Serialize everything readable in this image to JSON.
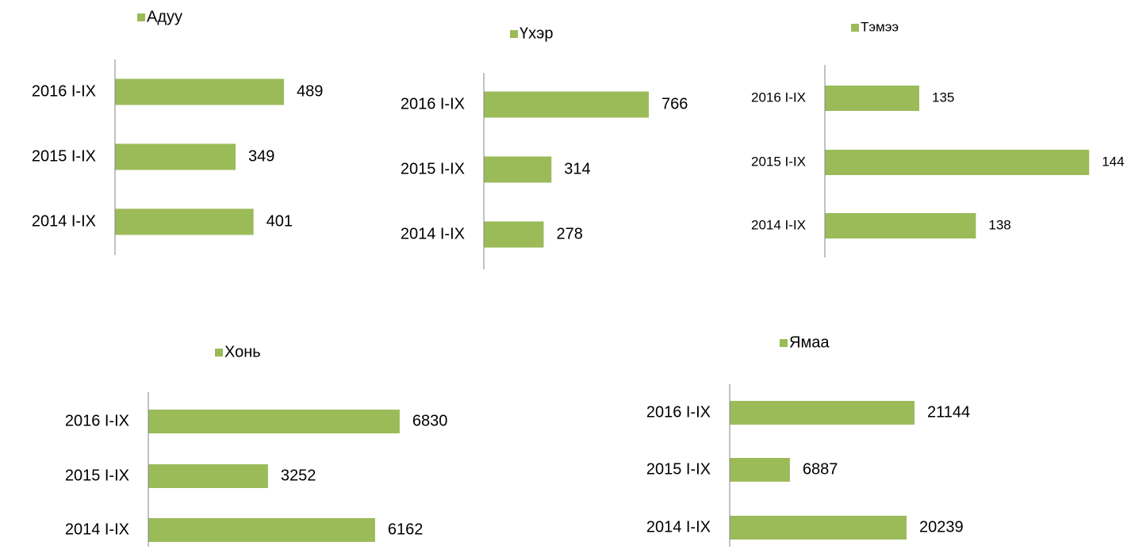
{
  "chart_data": [
    {
      "type": "bar",
      "orientation": "horizontal",
      "categories": [
        "2016 I-IX",
        "2015 I-IX",
        "2014 I-IX"
      ],
      "series": [
        {
          "name": "Адуу",
          "color": "#9bbb59",
          "values": [
            489,
            349,
            401
          ]
        }
      ],
      "xlim": [
        0,
        600
      ]
    },
    {
      "type": "bar",
      "orientation": "horizontal",
      "categories": [
        "2016 I-IX",
        "2015 I-IX",
        "2014 I-IX"
      ],
      "series": [
        {
          "name": "Үхэр",
          "color": "#9bbb59",
          "values": [
            766,
            314,
            278
          ]
        }
      ],
      "xlim": [
        0,
        1000
      ]
    },
    {
      "type": "bar",
      "orientation": "horizontal",
      "categories": [
        "2016 I-IX",
        "2015 I-IX",
        "2014 I-IX"
      ],
      "series": [
        {
          "name": "Тэмээ",
          "color": "#9bbb59",
          "values": [
            135,
            144,
            138
          ]
        }
      ],
      "xlim": [
        130,
        145
      ]
    },
    {
      "type": "bar",
      "orientation": "horizontal",
      "categories": [
        "2016 I-IX",
        "2015 I-IX",
        "2014 I-IX"
      ],
      "series": [
        {
          "name": "Хонь",
          "color": "#9bbb59",
          "values": [
            6830,
            3252,
            6162
          ]
        }
      ],
      "xlim": [
        0,
        8000
      ]
    },
    {
      "type": "bar",
      "orientation": "horizontal",
      "categories": [
        "2016 I-IX",
        "2015 I-IX",
        "2014 I-IX"
      ],
      "series": [
        {
          "name": "Ямаа",
          "color": "#9bbb59",
          "values": [
            21144,
            6887,
            20239
          ]
        }
      ],
      "xlim": [
        0,
        25000
      ]
    }
  ]
}
